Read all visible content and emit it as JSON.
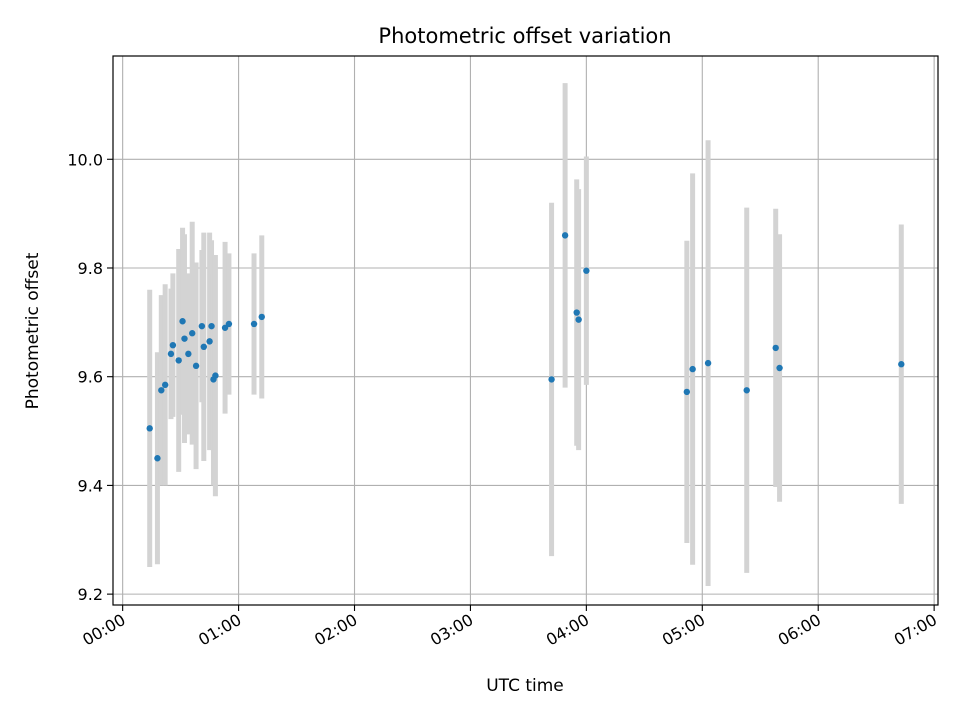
{
  "chart_data": {
    "type": "scatter",
    "title": "Photometric offset variation",
    "xlabel": "UTC time",
    "ylabel": "Photometric offset",
    "x_is_time": true,
    "xlim": [
      "-00:05",
      "07:02"
    ],
    "ylim": [
      9.18,
      10.19
    ],
    "x_ticks": [
      "00:00",
      "01:00",
      "02:00",
      "03:00",
      "04:00",
      "05:00",
      "06:00",
      "07:00"
    ],
    "y_ticks": [
      9.2,
      9.4,
      9.6,
      9.8,
      10.0
    ],
    "y_tick_labels": [
      "9.2",
      "9.4",
      "9.6",
      "9.8",
      "10.0"
    ],
    "grid": true,
    "colors": {
      "points": "#1f77b4",
      "error_bars": "#d3d3d3",
      "grid": "#b0b0b0"
    },
    "series": [
      {
        "points": [
          {
            "x": "00:14",
            "y": 9.505,
            "yerr": 0.255
          },
          {
            "x": "00:18",
            "y": 9.45,
            "yerr": 0.195
          },
          {
            "x": "00:20",
            "y": 9.575,
            "yerr": 0.175
          },
          {
            "x": "00:22",
            "y": 9.585,
            "yerr": 0.185
          },
          {
            "x": "00:25",
            "y": 9.642,
            "yerr": 0.12
          },
          {
            "x": "00:26",
            "y": 9.658,
            "yerr": 0.132
          },
          {
            "x": "00:29",
            "y": 9.63,
            "yerr": 0.205
          },
          {
            "x": "00:31",
            "y": 9.702,
            "yerr": 0.172
          },
          {
            "x": "00:32",
            "y": 9.67,
            "yerr": 0.192
          },
          {
            "x": "00:34",
            "y": 9.642,
            "yerr": 0.148
          },
          {
            "x": "00:36",
            "y": 9.68,
            "yerr": 0.205
          },
          {
            "x": "00:38",
            "y": 9.62,
            "yerr": 0.19
          },
          {
            "x": "00:41",
            "y": 9.693,
            "yerr": 0.14
          },
          {
            "x": "00:42",
            "y": 9.655,
            "yerr": 0.21
          },
          {
            "x": "00:45",
            "y": 9.665,
            "yerr": 0.2
          },
          {
            "x": "00:46",
            "y": 9.693,
            "yerr": 0.158
          },
          {
            "x": "00:47",
            "y": 9.595,
            "yerr": 0.195
          },
          {
            "x": "00:48",
            "y": 9.602,
            "yerr": 0.222
          },
          {
            "x": "00:53",
            "y": 9.69,
            "yerr": 0.158
          },
          {
            "x": "00:55",
            "y": 9.697,
            "yerr": 0.13
          },
          {
            "x": "01:08",
            "y": 9.697,
            "yerr": 0.13
          },
          {
            "x": "01:12",
            "y": 9.71,
            "yerr": 0.15
          },
          {
            "x": "03:42",
            "y": 9.595,
            "yerr": 0.325
          },
          {
            "x": "03:49",
            "y": 9.86,
            "yerr": 0.28
          },
          {
            "x": "03:55",
            "y": 9.718,
            "yerr": 0.245
          },
          {
            "x": "03:56",
            "y": 9.705,
            "yerr": 0.24
          },
          {
            "x": "04:00",
            "y": 9.795,
            "yerr": 0.21
          },
          {
            "x": "04:52",
            "y": 9.572,
            "yerr": 0.278
          },
          {
            "x": "04:55",
            "y": 9.614,
            "yerr": 0.36
          },
          {
            "x": "05:03",
            "y": 9.625,
            "yerr": 0.41
          },
          {
            "x": "05:23",
            "y": 9.575,
            "yerr": 0.336
          },
          {
            "x": "05:38",
            "y": 9.653,
            "yerr": 0.256
          },
          {
            "x": "05:40",
            "y": 9.616,
            "yerr": 0.246
          },
          {
            "x": "06:43",
            "y": 9.623,
            "yerr": 0.257
          }
        ]
      }
    ]
  }
}
